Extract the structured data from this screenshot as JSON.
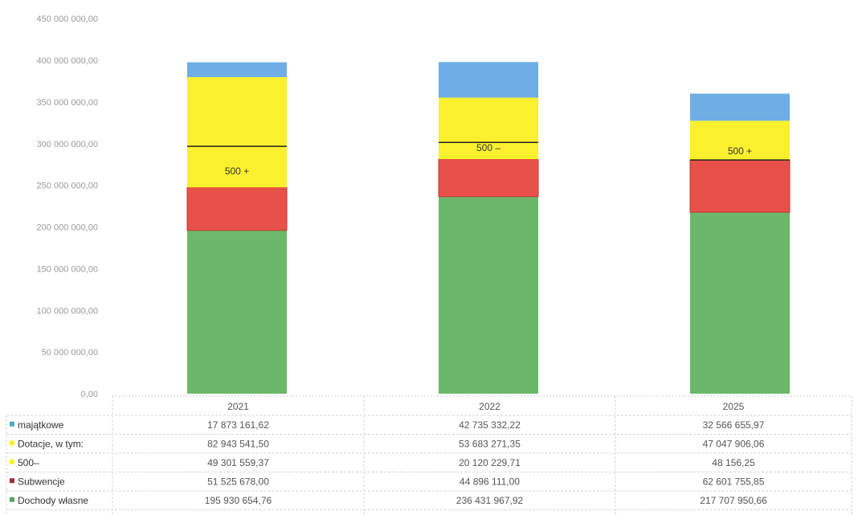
{
  "chart_data": {
    "type": "bar",
    "stacked": true,
    "categories": [
      "2021",
      "2022",
      "2025"
    ],
    "ylim": [
      0,
      450000000
    ],
    "yticks": [
      "0,00",
      "50 000 000,00",
      "100 000 000,00",
      "150 000 000,00",
      "200 000 000,00",
      "250 000 000,00",
      "300 000 000,00",
      "350 000 000,00",
      "400 000 000,00",
      "450 000 000,00"
    ],
    "grid": false,
    "legend": "table-left",
    "series": [
      {
        "name": "Dochody własne",
        "color": "#6cb86a",
        "values": [
          195930654.76,
          236431967.92,
          217707950.66
        ],
        "labels": [
          "195 930 654,76",
          "236 431 967,92",
          "217 707 950,66"
        ]
      },
      {
        "name": "Subwencje",
        "color": "#e8504a",
        "values": [
          51525678.0,
          44896111.0,
          62601755.85
        ],
        "labels": [
          "51 525 678,00",
          "44 896 111,00",
          "62 601 755,85"
        ]
      },
      {
        "name": "500–",
        "color": "#fbf02d",
        "values": [
          49301559.37,
          20120229.71,
          48156.25
        ],
        "labels": [
          "49 301 559,37",
          "20 120 229,71",
          "48 156,25"
        ]
      },
      {
        "name": "Dotacje, w tym:",
        "color": "#fbf02d",
        "values": [
          82943541.5,
          53683271.35,
          47047906.06
        ],
        "labels": [
          "82 943 541,50",
          "53 683 271,35",
          "47 047 906,06"
        ]
      },
      {
        "name": "majątkowe",
        "color": "#6eaee4",
        "values": [
          17873161.62,
          42735332.22,
          32566655.97
        ],
        "labels": [
          "17 873 161,62",
          "42 735 332,22",
          "32 566 655,97"
        ]
      }
    ],
    "annotations": [
      "500 +",
      "500 –",
      "500 +"
    ],
    "marker_colors": [
      "#4aacc6",
      "#fbf02d",
      "#fbf02d",
      "#9b2d3f",
      "#5aa06a"
    ]
  }
}
